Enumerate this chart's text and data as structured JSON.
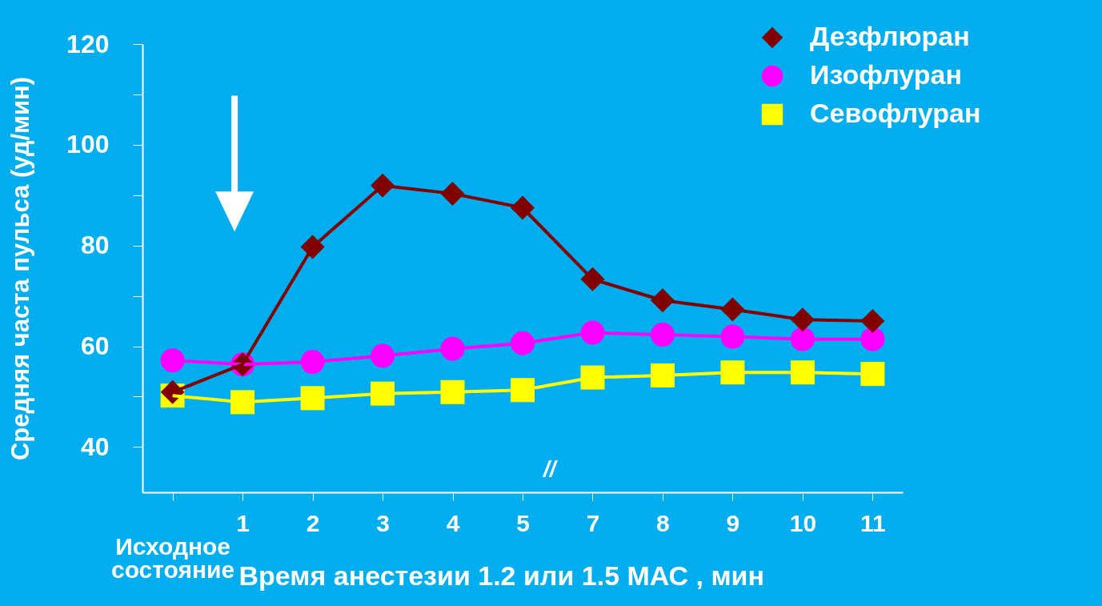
{
  "chart_data": {
    "type": "line",
    "xlabel": "Время анестезии 1.2 или 1.5 МАС , мин",
    "ylabel": "Средняя часта пульса (уд/мин)",
    "categories": [
      "Исходное\nсостояние",
      "1",
      "2",
      "3",
      "4",
      "5",
      "7",
      "8",
      "9",
      "10",
      "11"
    ],
    "series": [
      {
        "name": "Дезфлюран",
        "color": "#800000",
        "marker": "diamond",
        "values": [
          50.9,
          56.4,
          79.7,
          91.9,
          90.3,
          87.5,
          73.3,
          69.1,
          67.3,
          65.3,
          65.0
        ]
      },
      {
        "name": "Изофлуран",
        "color": "#ff00ff",
        "marker": "circle",
        "values": [
          57.2,
          56.4,
          56.9,
          58.1,
          59.5,
          60.6,
          62.7,
          62.3,
          61.9,
          61.4,
          61.4
        ]
      },
      {
        "name": "Севофлуран",
        "color": "#ffff00",
        "marker": "square",
        "values": [
          50.2,
          48.9,
          49.7,
          50.6,
          50.9,
          51.3,
          53.8,
          54.2,
          54.8,
          54.8,
          54.5
        ]
      }
    ],
    "ylim": [
      31,
      120
    ],
    "yticks": [
      40,
      {
        "value": 50,
        "label": null
      },
      60,
      {
        "value": 70,
        "label": null
      },
      80,
      {
        "value": 90,
        "label": null
      },
      100,
      {
        "value": 110,
        "label": null
      },
      120
    ],
    "grid": false,
    "legend": "top right",
    "line_style": "solid",
    "annotations": [
      "//"
    ]
  }
}
